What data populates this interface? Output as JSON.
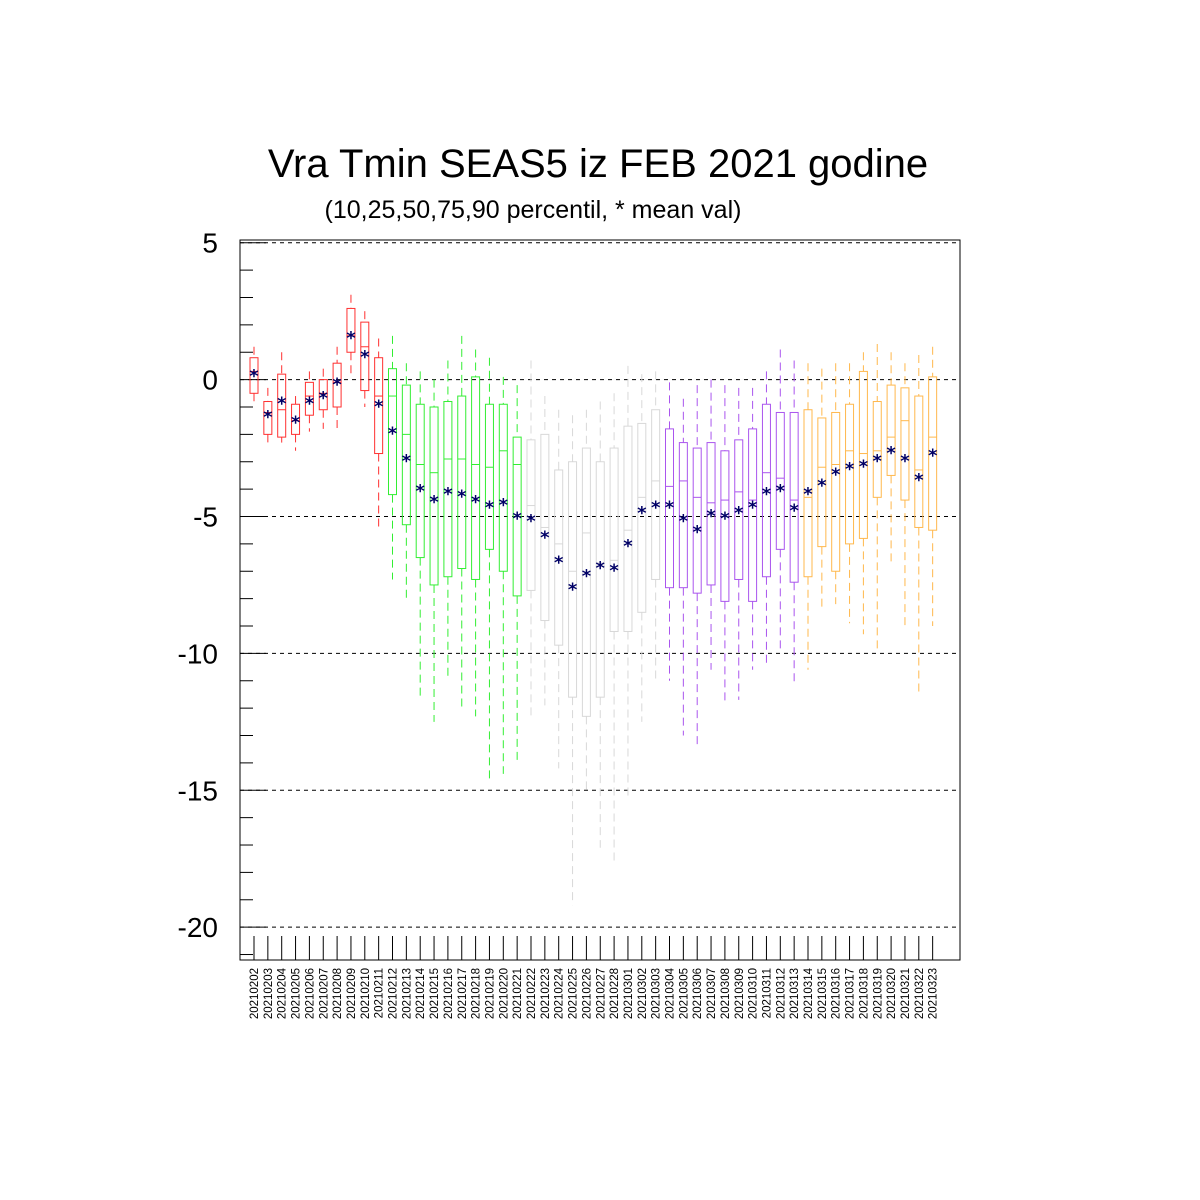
{
  "chart_data": {
    "type": "box",
    "title": "Vra Tmin SEAS5 iz FEB 2021 godine",
    "subtitle": "(10,25,50,75,90 percentil, * mean val)",
    "ylim": [
      -21.2,
      5.1
    ],
    "yticks": [
      5,
      0,
      -5,
      -10,
      -15,
      -20
    ],
    "ytick_labels": [
      "5",
      "0",
      "-5",
      "-10",
      "-15",
      "-20"
    ],
    "grid": "horizontal dashed at major ticks",
    "categories": [
      "20210202",
      "20210203",
      "20210204",
      "20210205",
      "20210206",
      "20210207",
      "20210208",
      "20210209",
      "20210210",
      "20210211",
      "20210212",
      "20210213",
      "20210214",
      "20210215",
      "20210216",
      "20210217",
      "20210218",
      "20210219",
      "20210220",
      "20210221",
      "20210222",
      "20210223",
      "20210224",
      "20210225",
      "20210226",
      "20210227",
      "20210228",
      "20210301",
      "20210302",
      "20210303",
      "20210304",
      "20210305",
      "20210306",
      "20210307",
      "20210308",
      "20210309",
      "20210310",
      "20210311",
      "20210312",
      "20210313",
      "20210314",
      "20210315",
      "20210316",
      "20210317",
      "20210318",
      "20210319",
      "20210320",
      "20210321",
      "20210322",
      "20210323"
    ],
    "group_colors": [
      "#ff3030",
      "#33ee33",
      "#d8d8d8",
      "#aa55ee",
      "#ffb84d"
    ],
    "mean_marker_color": "#000066",
    "series": [
      {
        "p10": -0.9,
        "p25": -0.5,
        "p50": 0.3,
        "p75": 0.8,
        "p90": 1.2,
        "mean": 0.2,
        "group": 0
      },
      {
        "p10": -2.4,
        "p25": -2.0,
        "p50": -1.2,
        "p75": -0.8,
        "p90": -0.3,
        "mean": -1.3,
        "group": 0
      },
      {
        "p10": -2.3,
        "p25": -2.1,
        "p50": -1.1,
        "p75": 0.2,
        "p90": 1.0,
        "mean": -0.8,
        "group": 0
      },
      {
        "p10": -2.6,
        "p25": -2.0,
        "p50": -1.5,
        "p75": -0.9,
        "p90": -0.6,
        "mean": -1.5,
        "group": 0
      },
      {
        "p10": -1.9,
        "p25": -1.3,
        "p50": -0.6,
        "p75": -0.1,
        "p90": 0.3,
        "mean": -0.8,
        "group": 0
      },
      {
        "p10": -1.8,
        "p25": -1.1,
        "p50": -0.5,
        "p75": 0.0,
        "p90": 0.4,
        "mean": -0.6,
        "group": 0
      },
      {
        "p10": -1.8,
        "p25": -1.0,
        "p50": -0.1,
        "p75": 0.6,
        "p90": 1.2,
        "mean": -0.1,
        "group": 0
      },
      {
        "p10": 0.1,
        "p25": 1.0,
        "p50": 1.6,
        "p75": 2.6,
        "p90": 3.1,
        "mean": 1.6,
        "group": 0
      },
      {
        "p10": -1.0,
        "p25": -0.4,
        "p50": 1.2,
        "p75": 2.1,
        "p90": 2.5,
        "mean": 0.9,
        "group": 0
      },
      {
        "p10": -5.4,
        "p25": -2.7,
        "p50": -0.6,
        "p75": 0.8,
        "p90": 1.5,
        "mean": -0.9,
        "group": 0
      },
      {
        "p10": -7.3,
        "p25": -4.2,
        "p50": -0.6,
        "p75": 0.4,
        "p90": 1.6,
        "mean": -1.9,
        "group": 1
      },
      {
        "p10": -8.0,
        "p25": -5.3,
        "p50": -2.0,
        "p75": -0.2,
        "p90": 0.6,
        "mean": -2.9,
        "group": 1
      },
      {
        "p10": -11.6,
        "p25": -6.5,
        "p50": -3.1,
        "p75": -0.9,
        "p90": 0.3,
        "mean": -4.0,
        "group": 1
      },
      {
        "p10": -12.5,
        "p25": -7.5,
        "p50": -3.4,
        "p75": -1.0,
        "p90": 0.0,
        "mean": -4.4,
        "group": 1
      },
      {
        "p10": -11.0,
        "p25": -7.2,
        "p50": -2.9,
        "p75": -0.8,
        "p90": 0.7,
        "mean": -4.1,
        "group": 1
      },
      {
        "p10": -12.0,
        "p25": -6.9,
        "p50": -2.9,
        "p75": -0.6,
        "p90": 1.6,
        "mean": -4.2,
        "group": 1
      },
      {
        "p10": -12.3,
        "p25": -7.3,
        "p50": -3.1,
        "p75": 0.1,
        "p90": 1.1,
        "mean": -4.4,
        "group": 1
      },
      {
        "p10": -14.6,
        "p25": -6.2,
        "p50": -3.2,
        "p75": -0.9,
        "p90": 0.8,
        "mean": -4.6,
        "group": 1
      },
      {
        "p10": -14.4,
        "p25": -7.0,
        "p50": -2.6,
        "p75": -0.9,
        "p90": 0.1,
        "mean": -4.5,
        "group": 1
      },
      {
        "p10": -13.9,
        "p25": -7.9,
        "p50": -3.1,
        "p75": -2.1,
        "p90": -0.2,
        "mean": -5.0,
        "group": 1
      },
      {
        "p10": -12.3,
        "p25": -7.7,
        "p50": -4.6,
        "p75": -2.2,
        "p90": 0.7,
        "mean": -5.1,
        "group": 2
      },
      {
        "p10": -11.9,
        "p25": -8.8,
        "p50": -5.4,
        "p75": -2.0,
        "p90": -0.6,
        "mean": -5.7,
        "group": 2
      },
      {
        "p10": -14.2,
        "p25": -9.7,
        "p50": -6.0,
        "p75": -3.3,
        "p90": -1.1,
        "mean": -6.6,
        "group": 2
      },
      {
        "p10": -19.2,
        "p25": -11.6,
        "p50": -7.0,
        "p75": -3.0,
        "p90": -1.3,
        "mean": -7.6,
        "group": 2
      },
      {
        "p10": -15.1,
        "p25": -12.3,
        "p50": -5.6,
        "p75": -2.5,
        "p90": -1.1,
        "mean": -7.1,
        "group": 2
      },
      {
        "p10": -17.1,
        "p25": -11.6,
        "p50": -6.7,
        "p75": -3.0,
        "p90": -0.8,
        "mean": -6.8,
        "group": 2
      },
      {
        "p10": -17.7,
        "p25": -9.2,
        "p50": -6.6,
        "p75": -2.5,
        "p90": -0.5,
        "mean": -6.9,
        "group": 2
      },
      {
        "p10": -15.2,
        "p25": -9.2,
        "p50": -5.5,
        "p75": -1.7,
        "p90": 0.5,
        "mean": -6.0,
        "group": 2
      },
      {
        "p10": -12.5,
        "p25": -8.5,
        "p50": -4.3,
        "p75": -1.6,
        "p90": 0.2,
        "mean": -4.8,
        "group": 2
      },
      {
        "p10": -11.1,
        "p25": -7.3,
        "p50": -3.7,
        "p75": -1.1,
        "p90": 0.3,
        "mean": -4.6,
        "group": 2
      },
      {
        "p10": -11.0,
        "p25": -7.6,
        "p50": -3.9,
        "p75": -1.8,
        "p90": -0.1,
        "mean": -4.6,
        "group": 3
      },
      {
        "p10": -13.0,
        "p25": -7.6,
        "p50": -3.7,
        "p75": -2.3,
        "p90": -0.7,
        "mean": -5.1,
        "group": 3
      },
      {
        "p10": -13.4,
        "p25": -7.8,
        "p50": -4.3,
        "p75": -2.5,
        "p90": -0.2,
        "mean": -5.5,
        "group": 3
      },
      {
        "p10": -10.6,
        "p25": -7.5,
        "p50": -4.5,
        "p75": -2.3,
        "p90": 0.0,
        "mean": -4.9,
        "group": 3
      },
      {
        "p10": -11.8,
        "p25": -8.1,
        "p50": -4.4,
        "p75": -2.6,
        "p90": -0.2,
        "mean": -5.0,
        "group": 3
      },
      {
        "p10": -11.7,
        "p25": -7.3,
        "p50": -4.1,
        "p75": -2.2,
        "p90": -0.3,
        "mean": -4.8,
        "group": 3
      },
      {
        "p10": -10.6,
        "p25": -8.1,
        "p50": -4.4,
        "p75": -1.8,
        "p90": -0.3,
        "mean": -4.6,
        "group": 3
      },
      {
        "p10": -10.5,
        "p25": -7.2,
        "p50": -3.4,
        "p75": -0.9,
        "p90": 0.3,
        "mean": -4.1,
        "group": 3
      },
      {
        "p10": -10.0,
        "p25": -6.2,
        "p50": -3.6,
        "p75": -1.2,
        "p90": 1.1,
        "mean": -4.0,
        "group": 3
      },
      {
        "p10": -11.2,
        "p25": -7.4,
        "p50": -4.4,
        "p75": -1.2,
        "p90": 0.7,
        "mean": -4.7,
        "group": 3
      },
      {
        "p10": -10.6,
        "p25": -7.2,
        "p50": -4.3,
        "p75": -1.1,
        "p90": 0.6,
        "mean": -4.1,
        "group": 4
      },
      {
        "p10": -8.4,
        "p25": -6.1,
        "p50": -3.2,
        "p75": -1.4,
        "p90": 0.4,
        "mean": -3.8,
        "group": 4
      },
      {
        "p10": -8.2,
        "p25": -7.0,
        "p50": -3.1,
        "p75": -1.2,
        "p90": 0.6,
        "mean": -3.4,
        "group": 4
      },
      {
        "p10": -8.9,
        "p25": -6.0,
        "p50": -2.6,
        "p75": -0.9,
        "p90": 0.6,
        "mean": -3.2,
        "group": 4
      },
      {
        "p10": -9.3,
        "p25": -5.8,
        "p50": -2.7,
        "p75": 0.3,
        "p90": 1.0,
        "mean": -3.1,
        "group": 4
      },
      {
        "p10": -9.9,
        "p25": -4.3,
        "p50": -2.6,
        "p75": -0.8,
        "p90": 1.3,
        "mean": -2.9,
        "group": 4
      },
      {
        "p10": -6.8,
        "p25": -3.5,
        "p50": -2.1,
        "p75": -0.2,
        "p90": 1.0,
        "mean": -2.6,
        "group": 4
      },
      {
        "p10": -9.1,
        "p25": -4.4,
        "p50": -1.5,
        "p75": -0.3,
        "p90": 0.6,
        "mean": -2.9,
        "group": 4
      },
      {
        "p10": -11.5,
        "p25": -5.4,
        "p50": -3.3,
        "p75": -0.6,
        "p90": 0.9,
        "mean": -3.6,
        "group": 4
      },
      {
        "p10": -9.0,
        "p25": -5.5,
        "p50": -2.1,
        "p75": 0.1,
        "p90": 1.2,
        "mean": -2.7,
        "group": 4
      }
    ]
  }
}
